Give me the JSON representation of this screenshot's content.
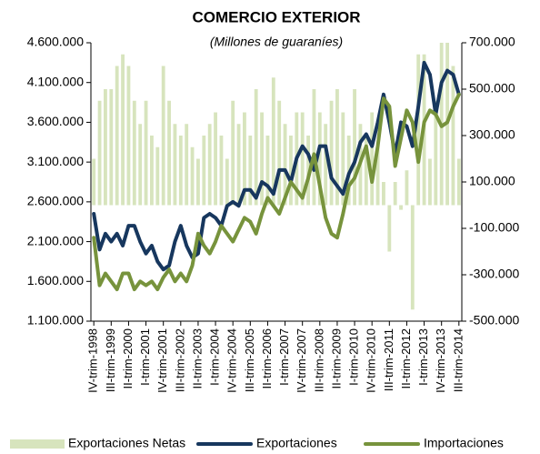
{
  "chart_data": {
    "type": "bar-line",
    "title": "COMERCIO EXTERIOR",
    "subtitle": "(Millones de guaraníes)",
    "categories": [
      "IV-trim-1998",
      null,
      null,
      "III-trim-1999",
      null,
      null,
      "II-trim-2000",
      null,
      null,
      "I-trim-2001",
      null,
      null,
      "IV-trim-2001",
      null,
      null,
      "III-trim-2002",
      null,
      null,
      "II-trim-2003",
      null,
      null,
      "I-trim-2004",
      null,
      null,
      "IV-trim-2004",
      null,
      null,
      "III-trim-2005",
      null,
      null,
      "II-trim-2006",
      null,
      null,
      "I-trim-2007",
      null,
      null,
      "IV-trim-2007",
      null,
      null,
      "III-trim-2008",
      null,
      null,
      "II-trim-2009",
      null,
      null,
      "I-trim-2010",
      null,
      null,
      "IV-trim-2010",
      null,
      null,
      "III-trim-2011",
      null,
      null,
      "II-trim-2012",
      null,
      null,
      "I-trim-2013",
      null,
      null,
      "IV-trim-2013",
      null,
      null,
      "III-trim-2014"
    ],
    "series": [
      {
        "name": "Exportaciones Netas",
        "type": "bar",
        "axis": "y2",
        "color": "#d7e4bd",
        "values": [
          200000,
          450000,
          500000,
          500000,
          600000,
          650000,
          600000,
          450000,
          350000,
          450000,
          300000,
          250000,
          600000,
          450000,
          350000,
          300000,
          350000,
          250000,
          200000,
          300000,
          350000,
          400000,
          300000,
          200000,
          450000,
          350000,
          400000,
          300000,
          500000,
          400000,
          300000,
          550000,
          450000,
          350000,
          300000,
          400000,
          400000,
          300000,
          500000,
          400000,
          350000,
          450000,
          500000,
          400000,
          300000,
          500000,
          350000,
          300000,
          400000,
          250000,
          100000,
          -200000,
          100000,
          -20000,
          150000,
          -450000,
          650000,
          650000,
          200000,
          450000,
          700000,
          700000,
          600000,
          200000
        ]
      },
      {
        "name": "Exportaciones",
        "type": "line",
        "color": "#17375e",
        "values": [
          2450000,
          2000000,
          2200000,
          2100000,
          2200000,
          2050000,
          2300000,
          2300000,
          2100000,
          1950000,
          2050000,
          1850000,
          1750000,
          1800000,
          2100000,
          2300000,
          2050000,
          1900000,
          1950000,
          2400000,
          2450000,
          2400000,
          2300000,
          2550000,
          2600000,
          2550000,
          2750000,
          2750000,
          2650000,
          2850000,
          2800000,
          2700000,
          3000000,
          3000000,
          2850000,
          3150000,
          3300000,
          3200000,
          3000000,
          3300000,
          3300000,
          2900000,
          2800000,
          2700000,
          2950000,
          3100000,
          3350000,
          3450000,
          3300000,
          3600000,
          3950000,
          3600000,
          3200000,
          3600000,
          3550000,
          3300000,
          3800000,
          4350000,
          4200000,
          3700000,
          4100000,
          4250000,
          4200000,
          3950000
        ]
      },
      {
        "name": "Importaciones",
        "type": "line",
        "color": "#77933c",
        "values": [
          2150000,
          1550000,
          1700000,
          1600000,
          1500000,
          1700000,
          1700000,
          1500000,
          1600000,
          1550000,
          1600000,
          1500000,
          1650000,
          1750000,
          1600000,
          1700000,
          1600000,
          1800000,
          2200000,
          2050000,
          1950000,
          2100000,
          2300000,
          2200000,
          2100000,
          2250000,
          2400000,
          2350000,
          2200000,
          2450000,
          2650000,
          2550000,
          2450000,
          2650000,
          2850000,
          2750000,
          2650000,
          2900000,
          3200000,
          2800000,
          2400000,
          2200000,
          2150000,
          2450000,
          2800000,
          2900000,
          3100000,
          3300000,
          2850000,
          3300000,
          3900000,
          3800000,
          3050000,
          3400000,
          3750000,
          3600000,
          3100000,
          3600000,
          3750000,
          3700000,
          3550000,
          3600000,
          3800000,
          3950000
        ]
      }
    ],
    "ylim": [
      1100000,
      4600000
    ],
    "yticks": [
      {
        "value": 1100000,
        "label": "1.100.000"
      },
      {
        "value": 1600000,
        "label": "1.600.000"
      },
      {
        "value": 2100000,
        "label": "2.100.000"
      },
      {
        "value": 2600000,
        "label": "2.600.000"
      },
      {
        "value": 3100000,
        "label": "3.100.000"
      },
      {
        "value": 3600000,
        "label": "3.600.000"
      },
      {
        "value": 4100000,
        "label": "4.100.000"
      },
      {
        "value": 4600000,
        "label": "4.600.000"
      }
    ],
    "y2lim": [
      -500000,
      700000
    ],
    "y2ticks": [
      {
        "value": -500000,
        "label": "-500.000"
      },
      {
        "value": -300000,
        "label": "-300.000"
      },
      {
        "value": -100000,
        "label": "-100.000"
      },
      {
        "value": 100000,
        "label": "100.000"
      },
      {
        "value": 300000,
        "label": "300.000"
      },
      {
        "value": 500000,
        "label": "500.000"
      },
      {
        "value": 700000,
        "label": "700.000"
      }
    ],
    "legend": "bottom"
  }
}
